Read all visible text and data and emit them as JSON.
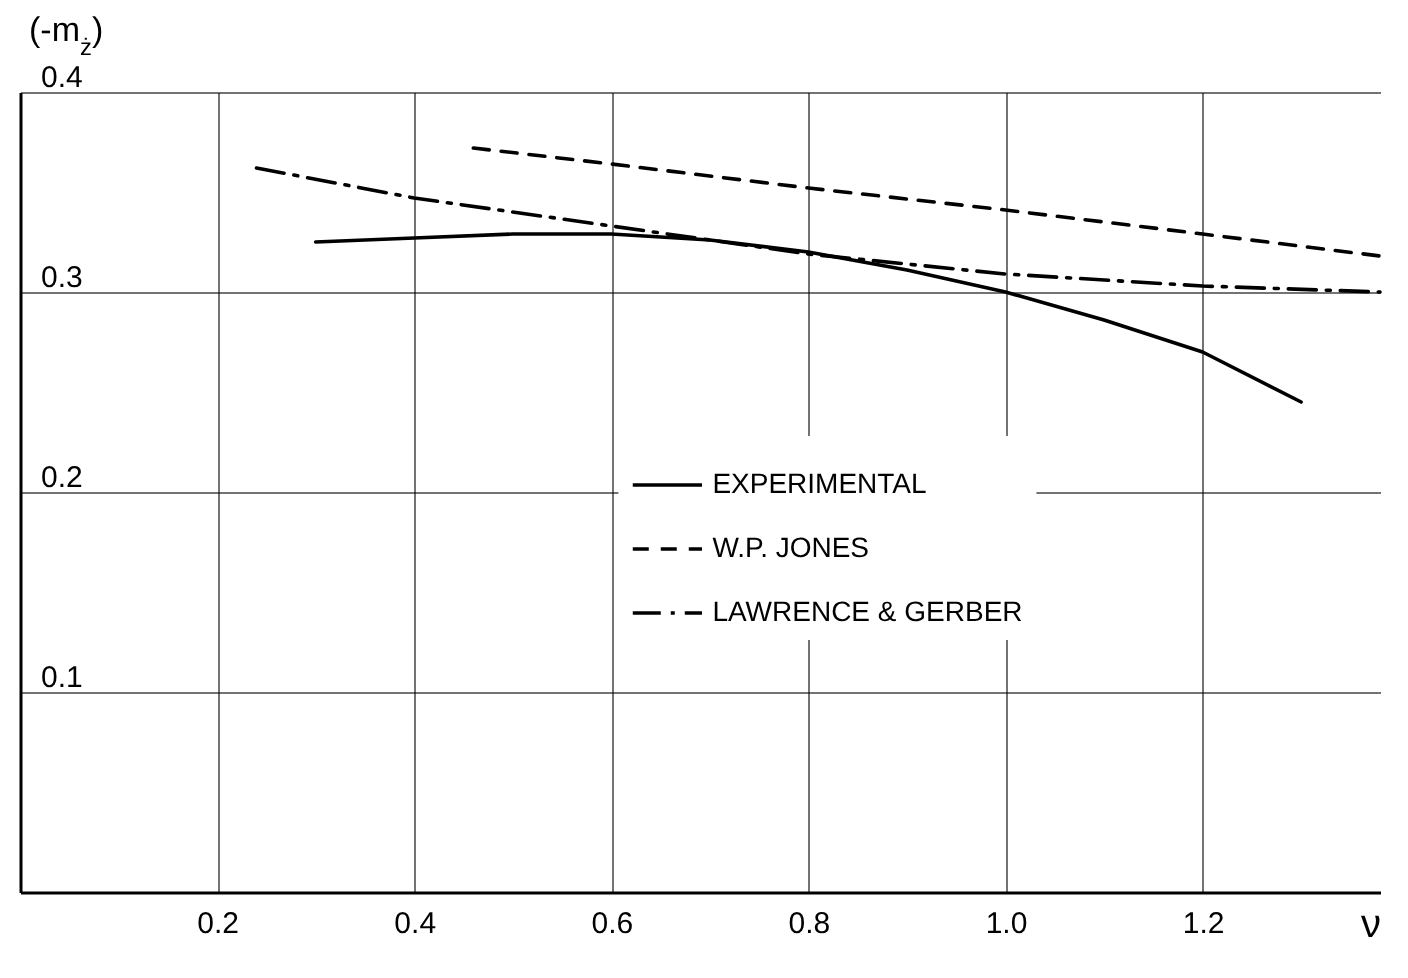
{
  "chart_data": {
    "type": "line",
    "xlabel": "ν",
    "ylabel": "(-m$_{ż}$)",
    "xlim": [
      0,
      1.38
    ],
    "ylim": [
      0,
      0.4
    ],
    "xticks": [
      0.2,
      0.4,
      0.6,
      0.8,
      {
        "value": 1.0,
        "label": "1.0"
      },
      1.2
    ],
    "yticks": [
      0.1,
      0.2,
      0.3,
      0.4
    ],
    "grid": true,
    "legend": "center right",
    "series": [
      {
        "name": "EXPERIMENTAL",
        "color": "#000000",
        "line_style": "solid",
        "x": [
          0.3,
          0.4,
          0.5,
          0.6,
          0.7,
          0.8,
          0.9,
          1.0,
          1.1,
          1.2,
          1.3
        ],
        "values": [
          0.325,
          0.327,
          0.329,
          0.329,
          0.326,
          0.32,
          0.311,
          0.3,
          0.286,
          0.27,
          0.245
        ]
      },
      {
        "name": "W.P. JONES",
        "color": "#000000",
        "line_style": "dashed",
        "x": [
          0.46,
          0.6,
          0.8,
          1.0,
          1.2,
          1.38
        ],
        "values": [
          0.372,
          0.364,
          0.352,
          0.341,
          0.329,
          0.318
        ]
      },
      {
        "name": "LAWRENCE & GERBER",
        "color": "#000000",
        "line_style": "dashdot",
        "x": [
          0.24,
          0.4,
          0.6,
          0.8,
          1.0,
          1.2,
          1.38
        ],
        "values": [
          0.362,
          0.347,
          0.333,
          0.319,
          0.309,
          0.303,
          0.3
        ]
      }
    ]
  }
}
